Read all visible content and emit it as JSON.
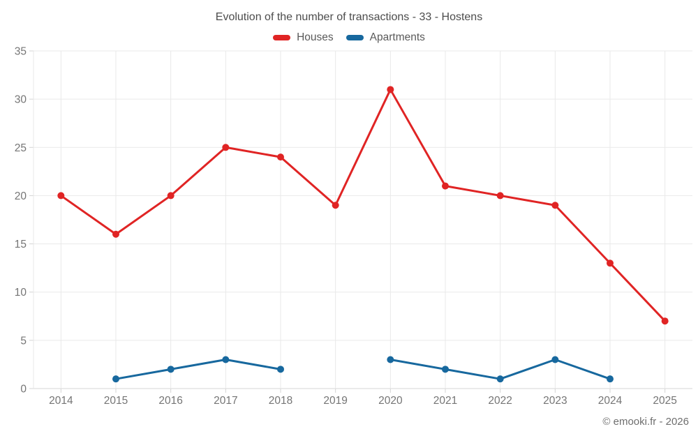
{
  "chart_data": {
    "type": "line",
    "title": "Evolution of the number of transactions - 33 - Hostens",
    "xlabel": "",
    "ylabel": "",
    "categories": [
      "2014",
      "2015",
      "2016",
      "2017",
      "2018",
      "2019",
      "2020",
      "2021",
      "2022",
      "2023",
      "2024",
      "2025"
    ],
    "series": [
      {
        "name": "Houses",
        "color": "#e02424",
        "values": [
          20,
          16,
          20,
          25,
          24,
          19,
          31,
          21,
          20,
          19,
          13,
          7
        ]
      },
      {
        "name": "Apartments",
        "color": "#17689e",
        "values": [
          null,
          1,
          2,
          3,
          2,
          null,
          3,
          2,
          1,
          3,
          1,
          null
        ]
      }
    ],
    "ylim": [
      0,
      35
    ],
    "ytick_step": 5,
    "yticks": [
      0,
      5,
      10,
      15,
      20,
      25,
      30,
      35
    ],
    "grid": true,
    "legend_position": "top"
  },
  "footer": {
    "copyright": "© emooki.fr - 2026"
  },
  "theme": {
    "background": "#ffffff",
    "grid_color": "#e9e9e9",
    "axis_color": "#d4d4d4",
    "tick_label_color": "#757575",
    "title_color": "#4c4c4c",
    "legend_text_color": "#5a5a5a",
    "footer_color": "#6e6e6e"
  }
}
